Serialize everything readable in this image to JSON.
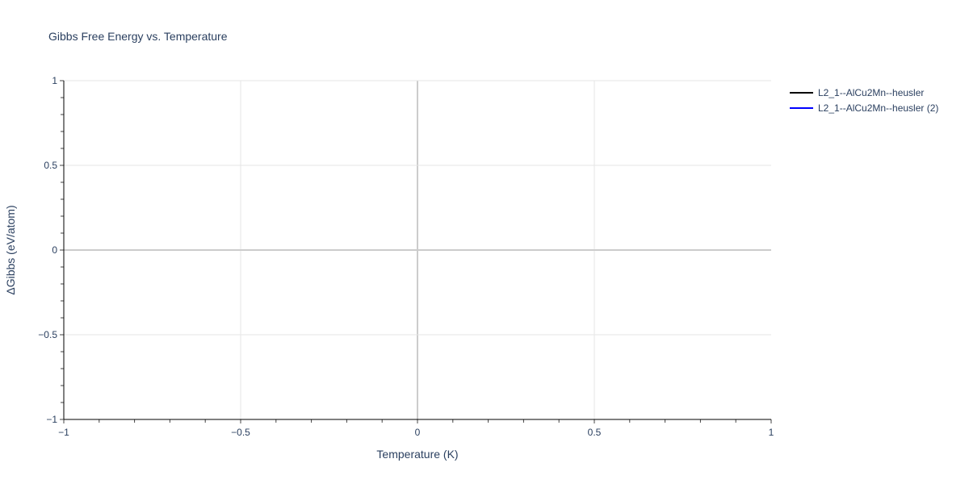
{
  "chart_data": {
    "type": "line",
    "title": "Gibbs Free Energy vs. Temperature",
    "xlabel": "Temperature (K)",
    "ylabel": "ΔGibbs (eV/atom)",
    "xlim": [
      -1,
      1
    ],
    "ylim": [
      -1,
      1
    ],
    "xticks": [
      -1,
      -0.5,
      0,
      0.5,
      1
    ],
    "yticks": [
      -1,
      -0.5,
      0,
      0.5,
      1
    ],
    "xtick_labels": [
      "−1",
      "−0.5",
      "0",
      "0.5",
      "1"
    ],
    "ytick_labels": [
      "−1",
      "−0.5",
      "0",
      "0.5",
      "1"
    ],
    "minor_tick_step": 0.1,
    "grid": true,
    "legend_placement": "top-right outside",
    "series": [
      {
        "name": "L2_1--AlCu2Mn--heusler",
        "color": "#000000",
        "x": [],
        "y": []
      },
      {
        "name": "L2_1--AlCu2Mn--heusler (2)",
        "color": "#0000ff",
        "x": [],
        "y": []
      }
    ]
  }
}
